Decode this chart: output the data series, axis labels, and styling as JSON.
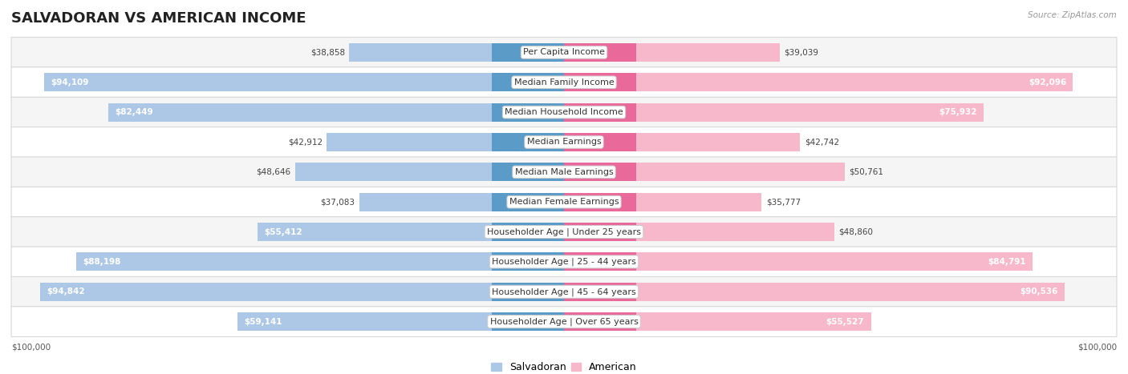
{
  "title": "SALVADORAN VS AMERICAN INCOME",
  "source": "Source: ZipAtlas.com",
  "categories": [
    "Per Capita Income",
    "Median Family Income",
    "Median Household Income",
    "Median Earnings",
    "Median Male Earnings",
    "Median Female Earnings",
    "Householder Age | Under 25 years",
    "Householder Age | 25 - 44 years",
    "Householder Age | 45 - 64 years",
    "Householder Age | Over 65 years"
  ],
  "salvadoran": [
    38858,
    94109,
    82449,
    42912,
    48646,
    37083,
    55412,
    88198,
    94842,
    59141
  ],
  "american": [
    39039,
    92096,
    75932,
    42742,
    50761,
    35777,
    48860,
    84791,
    90536,
    55527
  ],
  "salvadoran_light": "#adc8e6",
  "salvadoran_dark": "#5b9bc8",
  "american_light": "#f7b8cc",
  "american_dark": "#e8699a",
  "max_value": 100000,
  "background_color": "#ffffff",
  "row_bg_even": "#f5f5f5",
  "row_bg_odd": "#ffffff",
  "row_border_color": "#d8d8d8",
  "title_fontsize": 13,
  "label_fontsize": 8,
  "value_fontsize": 7.5,
  "legend_fontsize": 9,
  "inside_label_threshold": 55000,
  "bar_height": 0.62
}
